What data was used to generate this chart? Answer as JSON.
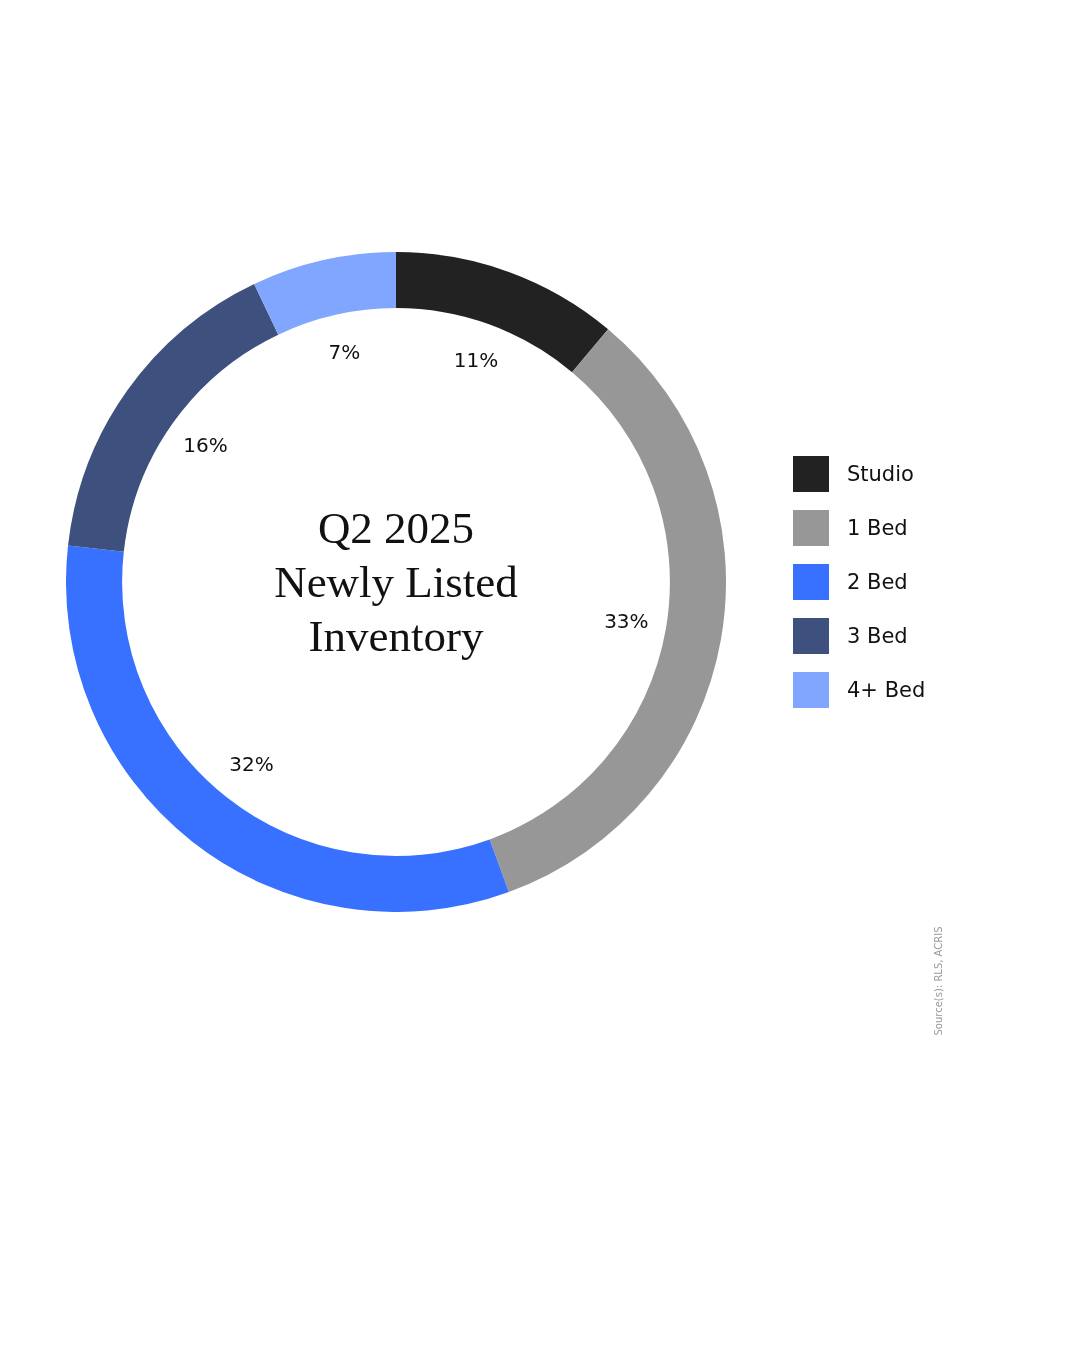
{
  "chart_data": {
    "type": "donut",
    "title": "Q2 2025 Newly Listed Inventory",
    "categories": [
      "Studio",
      "1 Bed",
      "2 Bed",
      "3 Bed",
      "4+ Bed"
    ],
    "values": [
      11,
      33,
      32,
      16,
      7
    ],
    "value_labels": [
      "11%",
      "33%",
      "32%",
      "16%",
      "7%"
    ],
    "colors": [
      "#222222",
      "#979797",
      "#3870ff",
      "#3e517e",
      "#80a6ff"
    ],
    "legend": "right",
    "annotations": [
      "Source(s): RLS, ACRIS"
    ]
  }
}
